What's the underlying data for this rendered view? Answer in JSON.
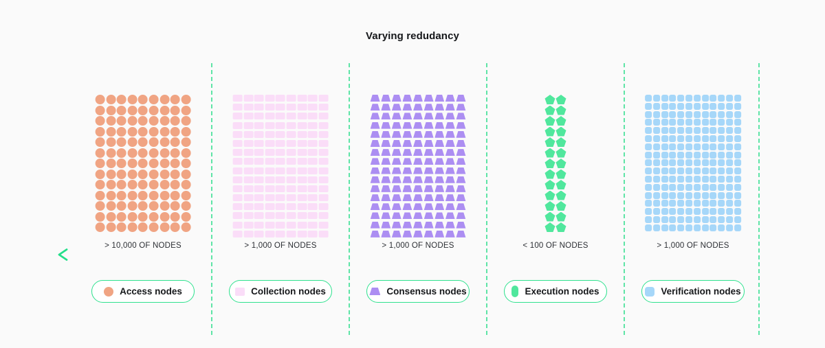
{
  "page": {
    "title": "Varying redudancy",
    "background": "#fafafa"
  },
  "arrow": {
    "direction": "left",
    "color_start": "#24df8a",
    "color_end": "#0a8a5e"
  },
  "divider_color": "#5ee4a6",
  "legend_border_color": "#2de18d",
  "sections": [
    {
      "id": "access-nodes",
      "count_label": "> 10,000 OF NODES",
      "legend_label": "Access nodes",
      "shape": "circle",
      "color": "#f0a483",
      "cols": 9,
      "rows": 13
    },
    {
      "id": "collection-nodes",
      "count_label": "> 1,000 OF NODES",
      "legend_label": "Collection nodes",
      "shape": "square-wide",
      "color": "#faddf8",
      "cols": 9,
      "rows": 16
    },
    {
      "id": "consensus-nodes",
      "count_label": "> 1,000 OF NODES",
      "legend_label": "Consensus nodes",
      "shape": "trapezoid",
      "color": "#ac8ef2",
      "cols": 9,
      "rows": 16
    },
    {
      "id": "execution-nodes",
      "count_label": "< 100 OF NODES",
      "legend_label": "Execution nodes",
      "shape": "pentagon",
      "color": "#50e79d",
      "cols": 2,
      "rows": 13
    },
    {
      "id": "verification-nodes",
      "count_label": "> 1,000 OF NODES",
      "legend_label": "Verification nodes",
      "shape": "rounded-square",
      "color": "#a6d7f9",
      "cols": 12,
      "rows": 17
    }
  ]
}
